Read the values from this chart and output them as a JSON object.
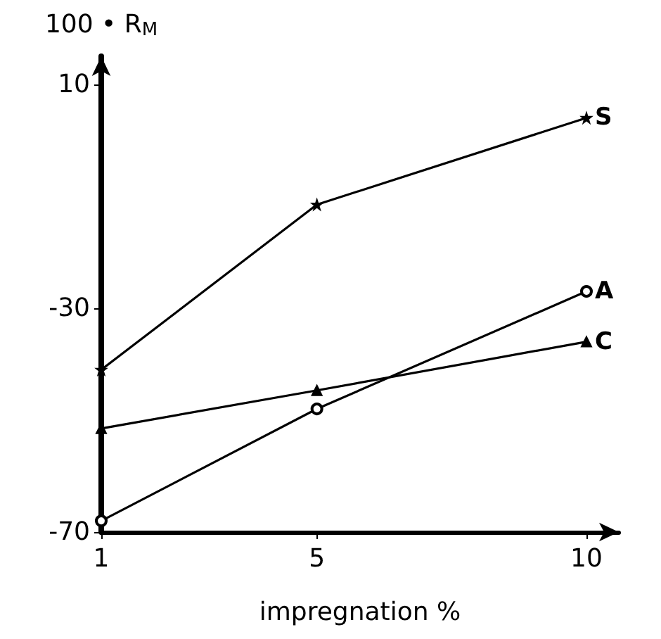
{
  "chart_data": {
    "type": "line",
    "xlabel": "impregnation %",
    "ylabel": "100 • R$_{M}$",
    "x": [
      1,
      5,
      10
    ],
    "xlim": [
      1,
      10.6
    ],
    "xticks": [
      1,
      5,
      10
    ],
    "ylim": [
      -70,
      15
    ],
    "yticks": [
      -70,
      -30,
      10
    ],
    "grid": false,
    "legend": false,
    "series": [
      {
        "name": "S",
        "color": "#000000",
        "marker": "star",
        "values": [
          -41,
          -11.5,
          4
        ]
      },
      {
        "name": "A",
        "color": "#000000",
        "marker": "circle",
        "values": [
          -68,
          -48,
          -27
        ]
      },
      {
        "name": "C",
        "color": "#000000",
        "marker": "triangle",
        "values": [
          -51.5,
          -44.7,
          -36
        ]
      }
    ]
  }
}
